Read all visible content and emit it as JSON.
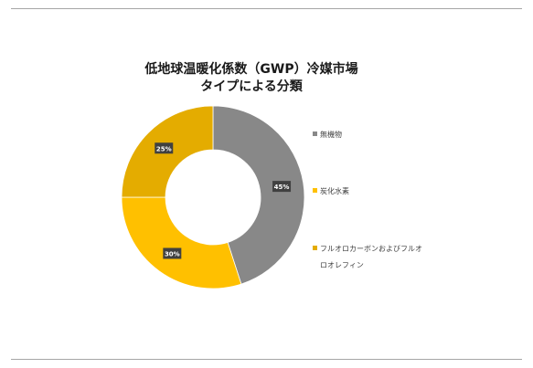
{
  "chart_data": {
    "type": "pie",
    "title": [
      "低地球温暖化係数（GWP）冷媒市場",
      "タイプによる分類"
    ],
    "slices": [
      {
        "label": "無機物",
        "value": 45,
        "display": "45%",
        "color": "#888888"
      },
      {
        "label": "炭化水素",
        "value": 30,
        "display": "30%",
        "color": "#ffc000"
      },
      {
        "label": "フルオロカーボンおよびフルオロオレフィン",
        "value": 25,
        "display": "25%",
        "color": "#e4ac00"
      }
    ],
    "legend": {
      "placement": "right",
      "items": [
        {
          "label": "無機物",
          "color": "#888888"
        },
        {
          "label": "炭化水素",
          "color": "#ffc000"
        },
        {
          "label_lines": [
            "フルオロカーボンおよびフルオ",
            "ロオレフィン"
          ],
          "color": "#e4ac00"
        }
      ]
    }
  }
}
